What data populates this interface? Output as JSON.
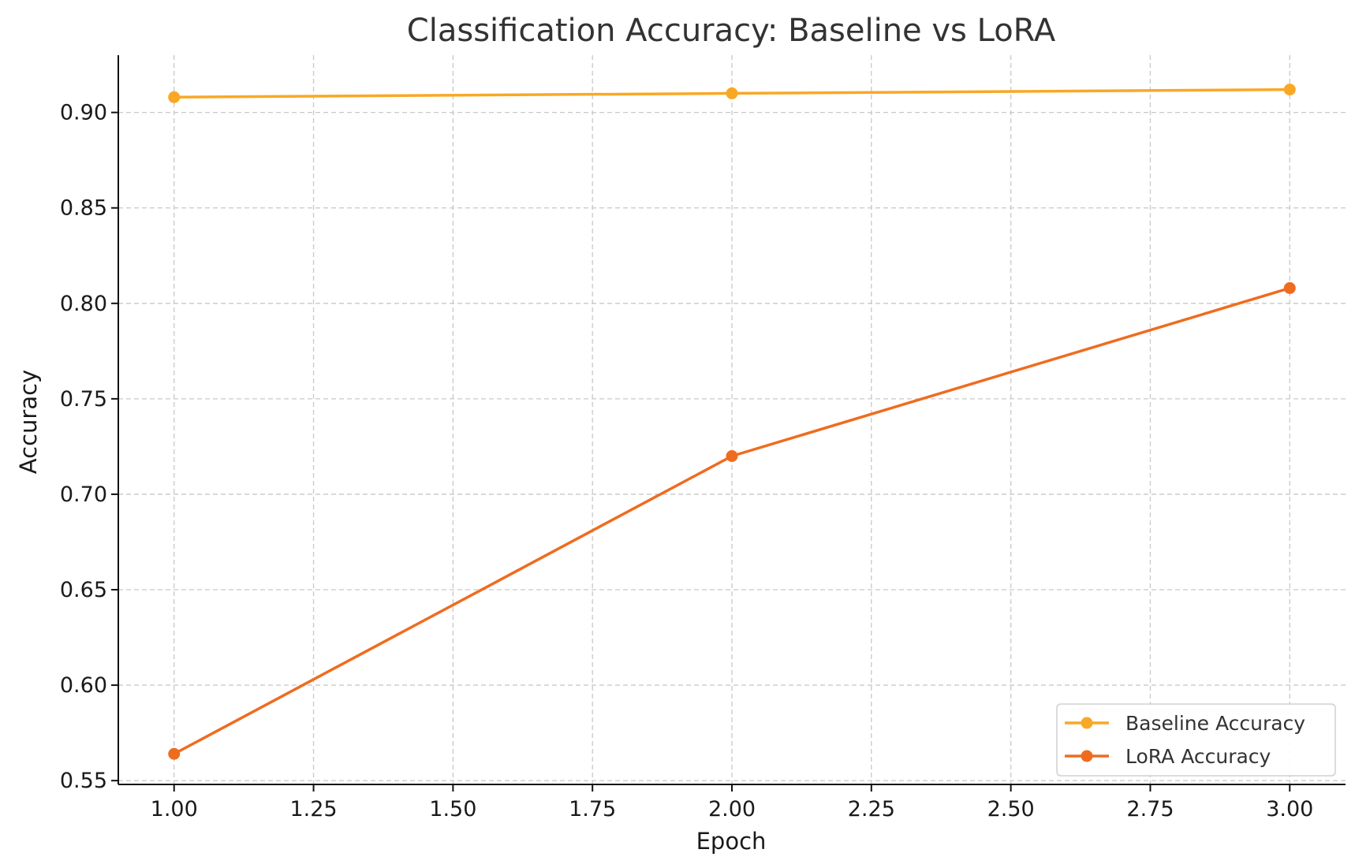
{
  "chart_data": {
    "type": "line",
    "title": "Classification Accuracy: Baseline vs LoRA",
    "xlabel": "Epoch",
    "ylabel": "Accuracy",
    "x": [
      1.0,
      2.0,
      3.0
    ],
    "xlim": [
      0.9,
      3.1
    ],
    "ylim": [
      0.548,
      0.93
    ],
    "xticks": [
      1.0,
      1.25,
      1.5,
      1.75,
      2.0,
      2.25,
      2.5,
      2.75,
      3.0
    ],
    "xtick_labels": [
      "1.00",
      "1.25",
      "1.50",
      "1.75",
      "2.00",
      "2.25",
      "2.50",
      "2.75",
      "3.00"
    ],
    "yticks": [
      0.55,
      0.6,
      0.65,
      0.7,
      0.75,
      0.8,
      0.85,
      0.9
    ],
    "ytick_labels": [
      "0.55",
      "0.60",
      "0.65",
      "0.70",
      "0.75",
      "0.80",
      "0.85",
      "0.90"
    ],
    "grid": true,
    "legend_position": "bottom-right",
    "series": [
      {
        "name": "Baseline Accuracy",
        "color": "#F9A825",
        "values": [
          0.908,
          0.91,
          0.912
        ]
      },
      {
        "name": "LoRA Accuracy",
        "color": "#EF6C1F",
        "values": [
          0.564,
          0.72,
          0.808
        ]
      }
    ]
  }
}
